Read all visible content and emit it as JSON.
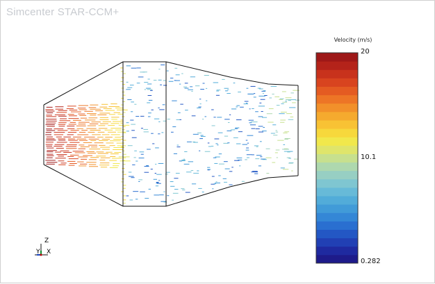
{
  "app": {
    "title": "Simcenter STAR-CCM+"
  },
  "legend": {
    "title": "Velocity (m/s)",
    "max_label": "20",
    "mid_label": "10.1",
    "min_label": "0.282",
    "max": 20,
    "mid": 10.1,
    "min": 0.282,
    "colors": [
      "#1e1b8a",
      "#1f2aa0",
      "#2140b4",
      "#2357c4",
      "#2a6fd0",
      "#3487d6",
      "#419bd8",
      "#52acd9",
      "#67bad8",
      "#7fc6d1",
      "#97cfc3",
      "#aed8ae",
      "#c7e08e",
      "#dfe56b",
      "#f1e84c",
      "#f7d83c",
      "#f8c234",
      "#f5aa2e",
      "#f2902a",
      "#ed7526",
      "#e45b22",
      "#d8441f",
      "#c8321c",
      "#b4231a",
      "#9e1818"
    ]
  },
  "triad": {
    "z_label": "Z",
    "y_label": "Y",
    "x_label": "X"
  }
}
